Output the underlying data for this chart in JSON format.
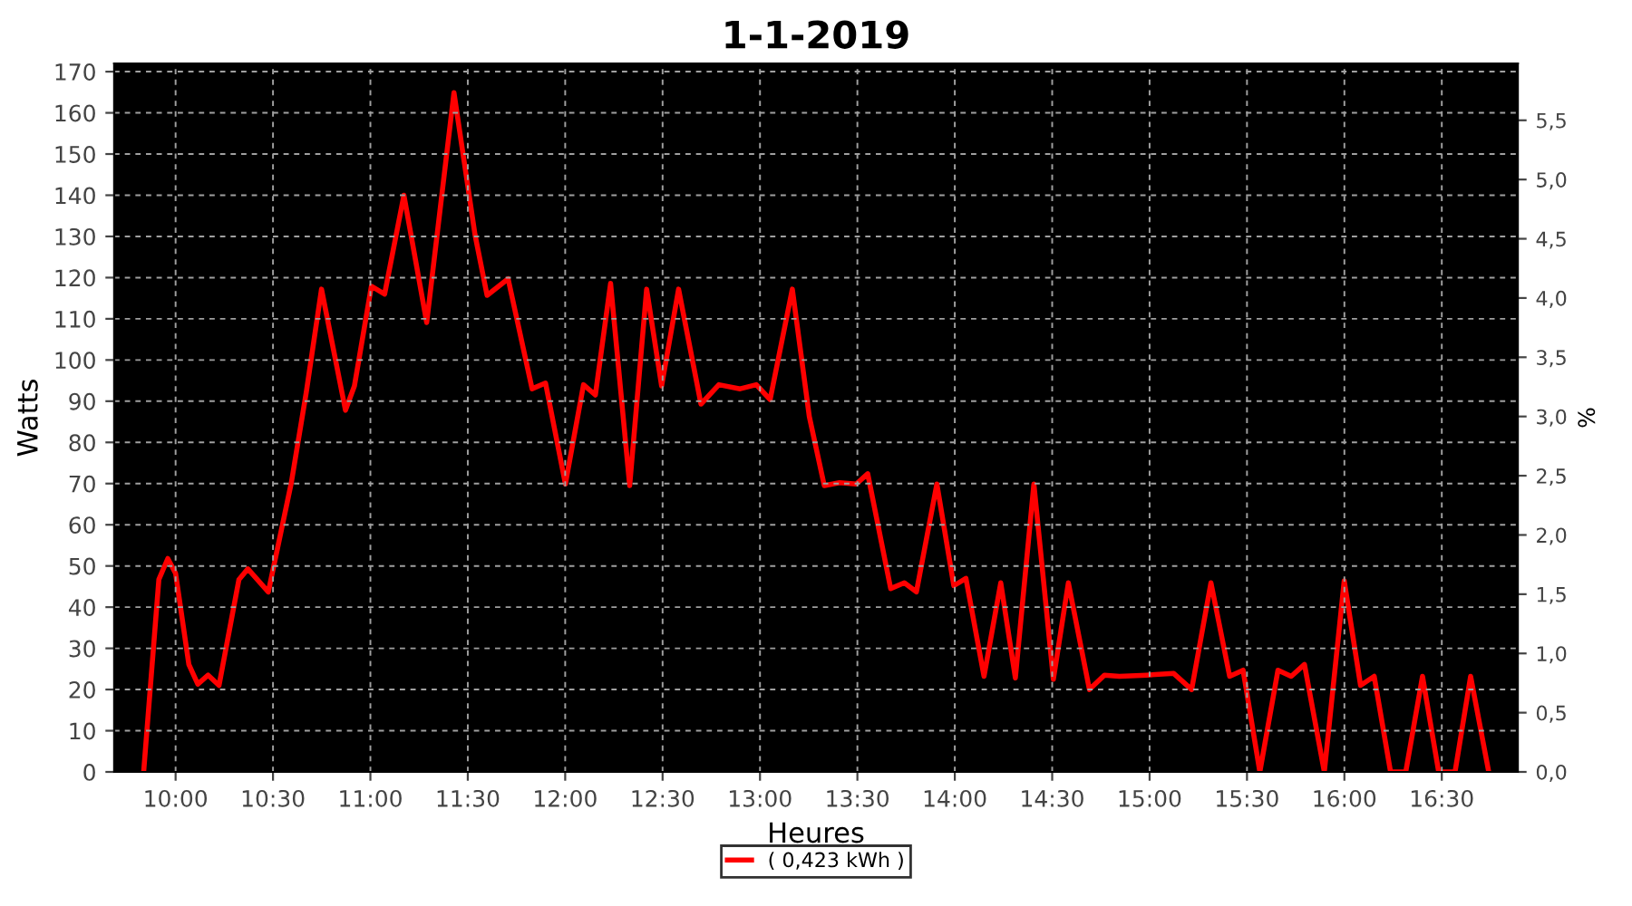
{
  "chart_data": {
    "type": "line",
    "title": "1-1-2019",
    "xlabel": "Heures",
    "ylabel": "Watts",
    "y2label": "%",
    "xlim": [
      9.685,
      16.89
    ],
    "xticks": [
      {
        "value": 10,
        "label": "10:00"
      },
      {
        "value": 10.5,
        "label": "10:30"
      },
      {
        "value": 11,
        "label": "11:00"
      },
      {
        "value": 11.5,
        "label": "11:30"
      },
      {
        "value": 12,
        "label": "12:00"
      },
      {
        "value": 12.5,
        "label": "12:30"
      },
      {
        "value": 13,
        "label": "13:00"
      },
      {
        "value": 13.5,
        "label": "13:30"
      },
      {
        "value": 14,
        "label": "14:00"
      },
      {
        "value": 14.5,
        "label": "14:30"
      },
      {
        "value": 15,
        "label": "15:00"
      },
      {
        "value": 15.5,
        "label": "15:30"
      },
      {
        "value": 16,
        "label": "16:00"
      },
      {
        "value": 16.5,
        "label": "16:30"
      }
    ],
    "ylim": [
      0,
      172
    ],
    "yticks": [
      0,
      10,
      20,
      30,
      40,
      50,
      60,
      70,
      80,
      90,
      100,
      110,
      120,
      130,
      140,
      150,
      160,
      170
    ],
    "y2lim": [
      0,
      5.98
    ],
    "y2ticks": [
      {
        "value": 0,
        "label": "0,0"
      },
      {
        "value": 0.5,
        "label": "0,5"
      },
      {
        "value": 1,
        "label": "1,0"
      },
      {
        "value": 1.5,
        "label": "1,5"
      },
      {
        "value": 2,
        "label": "2,0"
      },
      {
        "value": 2.5,
        "label": "2,5"
      },
      {
        "value": 3,
        "label": "3,0"
      },
      {
        "value": 3.5,
        "label": "3,5"
      },
      {
        "value": 4,
        "label": "4,0"
      },
      {
        "value": 4.5,
        "label": "4,5"
      },
      {
        "value": 5,
        "label": "5,0"
      },
      {
        "value": 5.5,
        "label": "5,5"
      }
    ],
    "grid": true,
    "legend": "bottom",
    "marker": "none",
    "line_style": "solid",
    "series": [
      {
        "name": "( 0,423 kWh )",
        "color": "#ff0000",
        "x": [
          9.836,
          9.914,
          9.96,
          10.0,
          10.068,
          10.114,
          10.167,
          10.223,
          10.325,
          10.371,
          10.476,
          10.594,
          10.671,
          10.749,
          10.872,
          10.918,
          11.005,
          11.073,
          11.172,
          11.289,
          11.429,
          11.537,
          11.599,
          11.707,
          11.83,
          11.899,
          12.001,
          12.094,
          12.155,
          12.233,
          12.331,
          12.418,
          12.495,
          12.582,
          12.697,
          12.789,
          12.898,
          12.981,
          13.052,
          13.166,
          13.253,
          13.33,
          13.408,
          13.494,
          13.553,
          13.671,
          13.741,
          13.803,
          13.908,
          13.995,
          14.057,
          14.15,
          14.236,
          14.311,
          14.406,
          14.506,
          14.583,
          14.691,
          14.768,
          14.845,
          14.985,
          15.124,
          15.216,
          15.315,
          15.411,
          15.48,
          15.566,
          15.659,
          15.727,
          15.795,
          15.897,
          15.999,
          16.083,
          16.153,
          16.237,
          16.315,
          16.401,
          16.484,
          16.568,
          16.648,
          16.741
        ],
        "values": [
          0,
          46.7,
          51.8,
          48.2,
          26.1,
          21.3,
          23.5,
          21.0,
          46.7,
          49.3,
          43.7,
          70.2,
          92.2,
          117.2,
          87.8,
          93.7,
          117.9,
          116.0,
          140.0,
          109.1,
          164.9,
          130.4,
          115.7,
          119.7,
          93.0,
          94.4,
          69.9,
          94.0,
          91.5,
          118.6,
          69.5,
          117.2,
          93.7,
          117.2,
          89.3,
          94.0,
          93.0,
          94.0,
          90.4,
          117.2,
          86.3,
          69.5,
          70.2,
          69.9,
          72.4,
          44.5,
          45.9,
          43.7,
          69.9,
          45.2,
          47.0,
          23.2,
          45.9,
          22.8,
          69.9,
          22.5,
          45.9,
          20.0,
          23.5,
          23.2,
          23.5,
          23.9,
          20.0,
          45.9,
          23.2,
          24.7,
          0,
          24.7,
          23.2,
          26.1,
          0,
          46.4,
          21.0,
          23.2,
          0,
          0,
          23.2,
          0,
          0,
          23.2,
          0
        ]
      }
    ]
  }
}
